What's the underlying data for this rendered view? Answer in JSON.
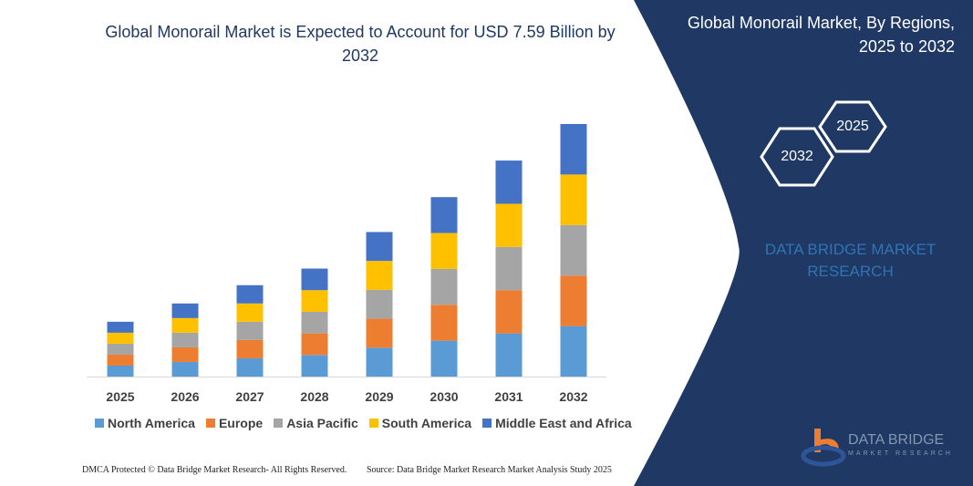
{
  "title": "Global Monorail Market is Expected to Account for USD 7.59 Billion by 2032",
  "side_panel": {
    "title": "Global Monorail Market, By Regions, 2025 to 2032",
    "hex_start": "2025",
    "hex_end": "2032",
    "brand": "DATA BRIDGE MARKET RESEARCH",
    "logo_text": "DATA BRIDGE",
    "logo_sub": "MARKET RESEARCH",
    "panel_color": "#1f3864"
  },
  "footer": {
    "left": "DMCA Protected © Data Bridge Market Research-  All Rights Reserved.",
    "right": "Source: Data Bridge Market Research  Market Analysis Study 2025"
  },
  "chart_data": {
    "type": "bar",
    "stacked": true,
    "categories": [
      "2025",
      "2026",
      "2027",
      "2028",
      "2029",
      "2030",
      "2031",
      "2032"
    ],
    "series": [
      {
        "name": "North America",
        "color": "#5b9bd5",
        "values": [
          0.33,
          0.44,
          0.55,
          0.65,
          0.87,
          1.08,
          1.3,
          1.52
        ]
      },
      {
        "name": "Europe",
        "color": "#ed7d31",
        "values": [
          0.33,
          0.44,
          0.55,
          0.65,
          0.87,
          1.08,
          1.3,
          1.52
        ]
      },
      {
        "name": "Asia Pacific",
        "color": "#a5a5a5",
        "values": [
          0.33,
          0.44,
          0.55,
          0.65,
          0.87,
          1.08,
          1.3,
          1.52
        ]
      },
      {
        "name": "South America",
        "color": "#ffc000",
        "values": [
          0.33,
          0.44,
          0.55,
          0.65,
          0.87,
          1.08,
          1.3,
          1.52
        ]
      },
      {
        "name": "Middle East and Africa",
        "color": "#4472c4",
        "values": [
          0.33,
          0.44,
          0.55,
          0.65,
          0.87,
          1.08,
          1.3,
          1.52
        ]
      }
    ],
    "legend_position": "bottom",
    "grid": false,
    "y_axis_shown": false
  }
}
